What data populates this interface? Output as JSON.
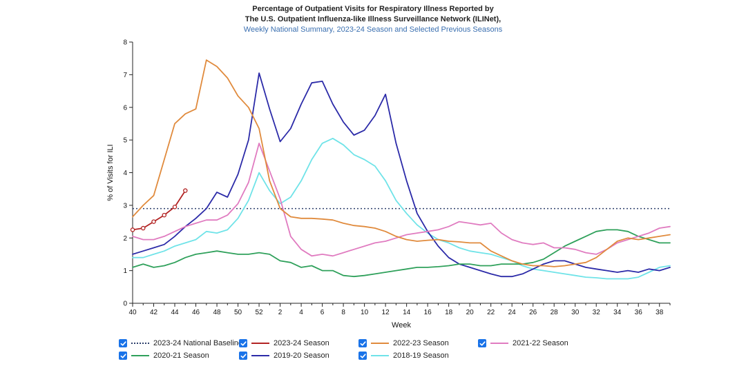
{
  "header": {
    "title_line1": "Percentage of Outpatient Visits for Respiratory Illness Reported by",
    "title_line2": "The U.S. Outpatient Influenza-like Illness Surveillance Network (ILINet),",
    "subtitle": "Weekly National Summary, 2023-24 Season and Selected Previous Seasons"
  },
  "legend": {
    "items": [
      {
        "label": "2023-24 National Baseline",
        "color": "#2c3e6b",
        "dashed": true
      },
      {
        "label": "2023-24 Season",
        "color": "#b22222"
      },
      {
        "label": "2022-23 Season",
        "color": "#e08a3c"
      },
      {
        "label": "2021-22 Season",
        "color": "#e07bc0"
      },
      {
        "label": "2020-21 Season",
        "color": "#2ea05a"
      },
      {
        "label": "2019-20 Season",
        "color": "#2b2aa8"
      },
      {
        "label": "2018-19 Season",
        "color": "#6fe3e8"
      }
    ]
  },
  "chart_data": {
    "type": "line",
    "title": "Percentage of Outpatient Visits for Respiratory Illness Reported by The U.S. Outpatient Influenza-like Illness Surveillance Network (ILINet), Weekly National Summary, 2023-24 Season and Selected Previous Seasons",
    "xlabel": "Week",
    "ylabel": "% of Visits for ILI",
    "ylim": [
      0,
      8
    ],
    "yticks": [
      0,
      1,
      2,
      3,
      4,
      5,
      6,
      7,
      8
    ],
    "x_tick_labels": [
      "40",
      "42",
      "44",
      "46",
      "48",
      "50",
      "52",
      "2",
      "4",
      "6",
      "8",
      "10",
      "12",
      "14",
      "16",
      "18",
      "20",
      "22",
      "24",
      "26",
      "28",
      "30",
      "32",
      "34",
      "36",
      "38"
    ],
    "x_count": 52,
    "baseline": {
      "name": "2023-24 National Baseline",
      "value": 2.9
    },
    "series": [
      {
        "name": "2023-24 Season",
        "color": "#b22222",
        "markers": true,
        "values": [
          2.25,
          2.3,
          2.5,
          2.7,
          2.95,
          3.45
        ]
      },
      {
        "name": "2022-23 Season",
        "color": "#e08a3c",
        "values": [
          2.65,
          3.0,
          3.3,
          4.4,
          5.5,
          5.8,
          5.95,
          7.45,
          7.25,
          6.9,
          6.35,
          6.0,
          5.35,
          3.75,
          2.9,
          2.65,
          2.6,
          2.6,
          2.58,
          2.55,
          2.45,
          2.38,
          2.35,
          2.3,
          2.2,
          2.05,
          1.95,
          1.9,
          1.93,
          1.95,
          1.9,
          1.88,
          1.85,
          1.85,
          1.6,
          1.45,
          1.3,
          1.2,
          1.15,
          1.15,
          1.12,
          1.15,
          1.2,
          1.25,
          1.4,
          1.65,
          1.9,
          2.0,
          1.95,
          2.0,
          2.05,
          2.1
        ]
      },
      {
        "name": "2021-22 Season",
        "color": "#e07bc0",
        "values": [
          2.05,
          1.95,
          1.95,
          2.05,
          2.2,
          2.35,
          2.45,
          2.55,
          2.55,
          2.7,
          3.05,
          3.7,
          4.9,
          4.05,
          3.2,
          2.05,
          1.65,
          1.45,
          1.5,
          1.45,
          1.55,
          1.65,
          1.75,
          1.85,
          1.9,
          2.0,
          2.1,
          2.15,
          2.2,
          2.25,
          2.35,
          2.5,
          2.45,
          2.4,
          2.45,
          2.15,
          1.95,
          1.85,
          1.8,
          1.85,
          1.7,
          1.7,
          1.65,
          1.55,
          1.5,
          1.65,
          1.85,
          1.95,
          2.05,
          2.15,
          2.3,
          2.35
        ]
      },
      {
        "name": "2020-21 Season",
        "color": "#2ea05a",
        "values": [
          1.1,
          1.2,
          1.1,
          1.15,
          1.25,
          1.4,
          1.5,
          1.55,
          1.6,
          1.55,
          1.5,
          1.5,
          1.55,
          1.5,
          1.3,
          1.25,
          1.1,
          1.15,
          1.0,
          1.0,
          0.85,
          0.82,
          0.85,
          0.9,
          0.95,
          1.0,
          1.05,
          1.1,
          1.1,
          1.12,
          1.15,
          1.2,
          1.2,
          1.15,
          1.15,
          1.2,
          1.2,
          1.2,
          1.25,
          1.35,
          1.55,
          1.75,
          1.9,
          2.05,
          2.2,
          2.25,
          2.25,
          2.2,
          2.05,
          1.95,
          1.85,
          1.85
        ]
      },
      {
        "name": "2019-20 Season",
        "color": "#2b2aa8",
        "values": [
          1.5,
          1.6,
          1.7,
          1.8,
          2.05,
          2.35,
          2.6,
          2.9,
          3.4,
          3.25,
          3.95,
          5.0,
          7.05,
          5.95,
          4.95,
          5.35,
          6.1,
          6.75,
          6.8,
          6.1,
          5.55,
          5.15,
          5.3,
          5.75,
          6.4,
          4.9,
          3.75,
          2.75,
          2.2,
          1.75,
          1.4,
          1.2,
          1.1,
          1.0,
          0.9,
          0.82,
          0.82,
          0.9,
          1.05,
          1.2,
          1.3,
          1.3,
          1.2,
          1.1,
          1.05,
          1.0,
          0.95,
          1.0,
          0.95,
          1.05,
          1.0,
          1.1
        ]
      },
      {
        "name": "2018-19 Season",
        "color": "#6fe3e8",
        "values": [
          1.4,
          1.4,
          1.5,
          1.6,
          1.75,
          1.85,
          1.95,
          2.2,
          2.15,
          2.25,
          2.6,
          3.15,
          4.0,
          3.45,
          3.05,
          3.25,
          3.75,
          4.4,
          4.9,
          5.05,
          4.85,
          4.55,
          4.4,
          4.2,
          3.75,
          3.15,
          2.75,
          2.4,
          2.15,
          1.95,
          1.85,
          1.7,
          1.6,
          1.55,
          1.5,
          1.4,
          1.3,
          1.15,
          1.05,
          1.0,
          0.95,
          0.9,
          0.85,
          0.8,
          0.78,
          0.75,
          0.75,
          0.75,
          0.8,
          0.95,
          1.1,
          1.15
        ]
      }
    ]
  }
}
